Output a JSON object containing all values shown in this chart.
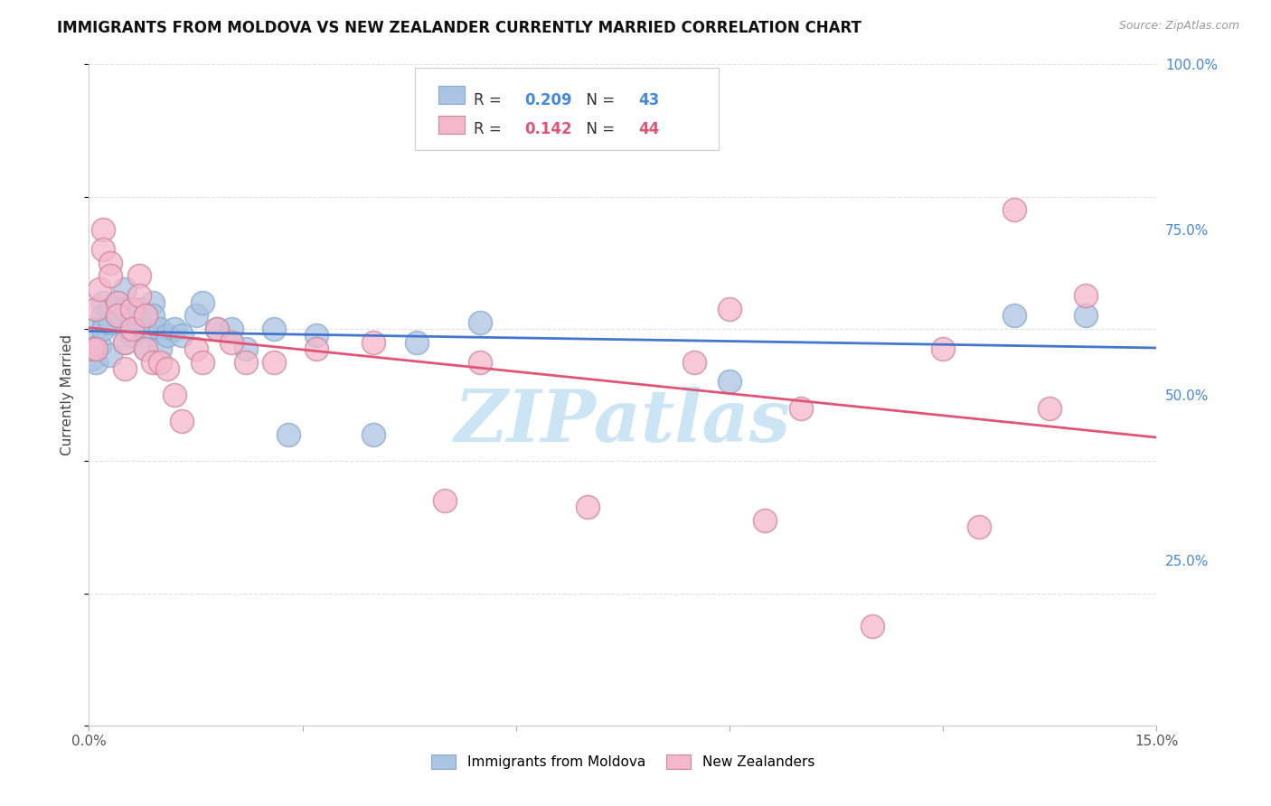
{
  "title": "IMMIGRANTS FROM MOLDOVA VS NEW ZEALANDER CURRENTLY MARRIED CORRELATION CHART",
  "source": "Source: ZipAtlas.com",
  "ylabel_label": "Currently Married",
  "x_min": 0.0,
  "x_max": 0.15,
  "y_min": 0.0,
  "y_max": 1.0,
  "blue_color": "#aac4e2",
  "pink_color": "#f5b8cb",
  "blue_line_color": "#4477cc",
  "pink_line_color": "#e05575",
  "R_blue": 0.209,
  "N_blue": 43,
  "R_pink": 0.142,
  "N_pink": 44,
  "blue_scatter_x": [
    0.0005,
    0.001,
    0.001,
    0.001,
    0.0015,
    0.002,
    0.002,
    0.002,
    0.003,
    0.003,
    0.003,
    0.004,
    0.004,
    0.005,
    0.005,
    0.005,
    0.006,
    0.006,
    0.007,
    0.007,
    0.008,
    0.008,
    0.009,
    0.009,
    0.01,
    0.01,
    0.011,
    0.012,
    0.013,
    0.015,
    0.016,
    0.018,
    0.02,
    0.022,
    0.026,
    0.028,
    0.032,
    0.04,
    0.046,
    0.055,
    0.09,
    0.13,
    0.14
  ],
  "blue_scatter_y": [
    0.555,
    0.57,
    0.6,
    0.55,
    0.575,
    0.62,
    0.64,
    0.6,
    0.63,
    0.61,
    0.56,
    0.64,
    0.62,
    0.66,
    0.63,
    0.58,
    0.61,
    0.59,
    0.63,
    0.61,
    0.6,
    0.57,
    0.64,
    0.62,
    0.6,
    0.57,
    0.59,
    0.6,
    0.59,
    0.62,
    0.64,
    0.6,
    0.6,
    0.57,
    0.6,
    0.44,
    0.59,
    0.44,
    0.58,
    0.61,
    0.52,
    0.62,
    0.62
  ],
  "pink_scatter_x": [
    0.0005,
    0.001,
    0.001,
    0.0015,
    0.002,
    0.002,
    0.003,
    0.003,
    0.004,
    0.004,
    0.005,
    0.005,
    0.006,
    0.006,
    0.007,
    0.007,
    0.008,
    0.008,
    0.009,
    0.01,
    0.011,
    0.012,
    0.013,
    0.015,
    0.016,
    0.018,
    0.02,
    0.022,
    0.026,
    0.032,
    0.04,
    0.05,
    0.055,
    0.07,
    0.085,
    0.09,
    0.095,
    0.1,
    0.11,
    0.12,
    0.125,
    0.13,
    0.135,
    0.14
  ],
  "pink_scatter_y": [
    0.57,
    0.63,
    0.57,
    0.66,
    0.75,
    0.72,
    0.7,
    0.68,
    0.64,
    0.62,
    0.58,
    0.54,
    0.63,
    0.6,
    0.68,
    0.65,
    0.62,
    0.57,
    0.55,
    0.55,
    0.54,
    0.5,
    0.46,
    0.57,
    0.55,
    0.6,
    0.58,
    0.55,
    0.55,
    0.57,
    0.58,
    0.34,
    0.55,
    0.33,
    0.55,
    0.63,
    0.31,
    0.48,
    0.15,
    0.57,
    0.3,
    0.78,
    0.48,
    0.65
  ],
  "background_color": "#ffffff",
  "grid_color": "#e0e0e0",
  "watermark_text": "ZIPatlas",
  "watermark_color": "#cce5f5"
}
